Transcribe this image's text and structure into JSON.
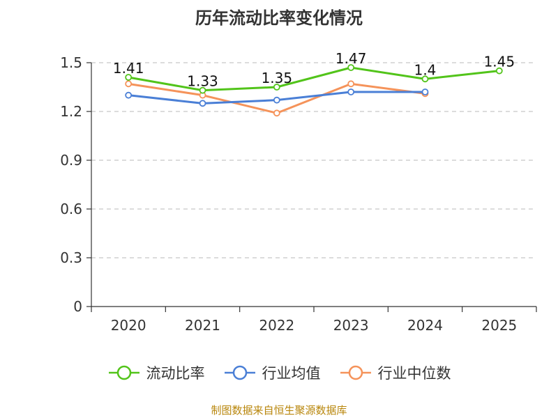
{
  "title": "历年流动比率变化情况",
  "source": "制图数据来自恒生聚源数据库",
  "chart_data": {
    "type": "line",
    "title": "历年流动比率变化情况",
    "categories": [
      "2020",
      "2021",
      "2022",
      "2023",
      "2024",
      "2025"
    ],
    "ylim": [
      0,
      1.5
    ],
    "yticks": [
      "0",
      "0.3",
      "0.6",
      "0.9",
      "1.2",
      "1.5"
    ],
    "grid": true,
    "legend_position": "bottom",
    "series": [
      {
        "name": "流动比率",
        "color": "#52c41a",
        "values": [
          1.41,
          1.33,
          1.35,
          1.47,
          1.4,
          1.45
        ],
        "labels": [
          "1.41",
          "1.33",
          "1.35",
          "1.47",
          "1.4",
          "1.45"
        ]
      },
      {
        "name": "行业均值",
        "color": "#4a7fd6",
        "values": [
          1.3,
          1.25,
          1.27,
          1.32,
          1.32,
          null
        ]
      },
      {
        "name": "行业中位数",
        "color": "#f5935a",
        "values": [
          1.37,
          1.3,
          1.19,
          1.37,
          1.31,
          null
        ]
      }
    ]
  }
}
